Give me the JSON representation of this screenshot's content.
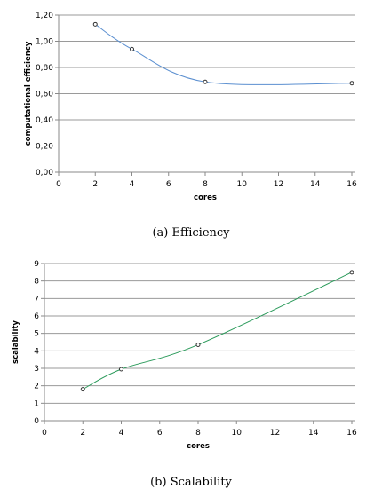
{
  "chart_data": [
    {
      "type": "line",
      "caption": "(a) Efficiency",
      "xlabel": "cores",
      "ylabel": "computational efficiency",
      "xlim": [
        0,
        16
      ],
      "ylim": [
        0,
        1.2
      ],
      "xticks": [
        "0",
        "2",
        "4",
        "6",
        "8",
        "10",
        "12",
        "14",
        "16"
      ],
      "yticks": [
        "0,00",
        "0,20",
        "0,40",
        "0,60",
        "0,80",
        "1,00",
        "1,20"
      ],
      "grid": "horizontal",
      "color": "#5b8fd0",
      "series": [
        {
          "x": [
            2,
            4,
            8,
            16
          ],
          "values": [
            1.13,
            0.94,
            0.69,
            0.68
          ]
        }
      ]
    },
    {
      "type": "line",
      "caption": "(b) Scalability",
      "xlabel": "cores",
      "ylabel": "scalability",
      "xlim": [
        0,
        16
      ],
      "ylim": [
        0,
        9
      ],
      "xticks": [
        "0",
        "2",
        "4",
        "6",
        "8",
        "10",
        "12",
        "14",
        "16"
      ],
      "yticks": [
        "0",
        "1",
        "2",
        "3",
        "4",
        "5",
        "6",
        "7",
        "8",
        "9"
      ],
      "grid": "horizontal",
      "color": "#2a9a5a",
      "series": [
        {
          "x": [
            2,
            4,
            8,
            16
          ],
          "values": [
            1.8,
            2.95,
            4.35,
            8.5
          ]
        }
      ]
    }
  ]
}
